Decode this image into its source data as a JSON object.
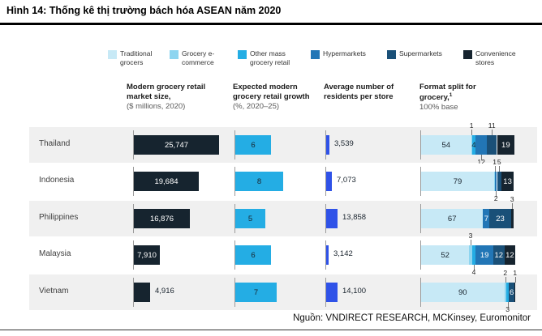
{
  "title": "Hình 14: Thống kê thị trường bách hóa ASEAN năm 2020",
  "source": "Nguồn: VNDIRECT RESEARCH, MCKinsey, Euromonitor",
  "colors": {
    "traditional": "#c7e9f6",
    "ecommerce": "#8ed5f0",
    "othermass": "#24ade4",
    "hypermarkets": "#2276b6",
    "supermarkets": "#1a5078",
    "convenience": "#16242f",
    "residents_bar": "#2f52e8",
    "dark_text": "#1a242e"
  },
  "legend": [
    {
      "key": "traditional",
      "label": "Traditional grocers"
    },
    {
      "key": "ecommerce",
      "label": "Grocery e-commerce"
    },
    {
      "key": "othermass",
      "label": "Other mass grocery retail"
    },
    {
      "key": "hypermarkets",
      "label": "Hypermarkets"
    },
    {
      "key": "supermarkets",
      "label": "Supermarkets"
    },
    {
      "key": "convenience",
      "label": "Convenience stores"
    }
  ],
  "columns": [
    {
      "title": "Modern grocery retail market size,",
      "subtitle": "($ millions, 2020)"
    },
    {
      "title": "Expected modern grocery retail growth",
      "subtitle": "(%, 2020–25)"
    },
    {
      "title": "Average number of residents per store",
      "subtitle": ""
    },
    {
      "title": "Format split for grocery,",
      "footnote_marker": "1",
      "subtitle": "100% base"
    }
  ],
  "chart_data": {
    "type": "bar",
    "countries": [
      "Thailand",
      "Indonesia",
      "Philippines",
      "Malaysia",
      "Vietnam"
    ],
    "market_size_musd": [
      25747,
      19684,
      16876,
      7910,
      4916
    ],
    "market_size_labels": [
      "25,747",
      "19,684",
      "16,876",
      "7,910",
      "4,916"
    ],
    "growth_pct": [
      6,
      8,
      5,
      6,
      7
    ],
    "residents_per_store": [
      3539,
      7073,
      13858,
      3142,
      14100
    ],
    "residents_labels": [
      "3,539",
      "7,073",
      "13,858",
      "3,142",
      "14,100"
    ],
    "format_split": [
      {
        "country": "Thailand",
        "segments": [
          {
            "category": "traditional",
            "value": 54,
            "label_pos": "inside"
          },
          {
            "category": "ecommerce",
            "value": 1,
            "label_pos": "above"
          },
          {
            "category": "othermass",
            "value": 4,
            "label_pos": "inside"
          },
          {
            "category": "hypermarkets",
            "value": 12,
            "label_pos": "below"
          },
          {
            "category": "supermarkets",
            "value": 11,
            "label_pos": "above"
          },
          {
            "category": "convenience",
            "value": 19,
            "label_pos": "inside"
          }
        ]
      },
      {
        "country": "Indonesia",
        "segments": [
          {
            "category": "traditional",
            "value": 79,
            "label_pos": "inside"
          },
          {
            "category": "ecommerce",
            "value": 1,
            "label_pos": "above"
          },
          {
            "category": "hypermarkets",
            "value": 2,
            "label_pos": "below"
          },
          {
            "category": "supermarkets",
            "value": 5,
            "label_pos": "above"
          },
          {
            "category": "convenience",
            "value": 13,
            "label_pos": "inside"
          }
        ]
      },
      {
        "country": "Philippines",
        "segments": [
          {
            "category": "traditional",
            "value": 67,
            "label_pos": "inside"
          },
          {
            "category": "hypermarkets",
            "value": 7,
            "label_pos": "inside"
          },
          {
            "category": "supermarkets",
            "value": 23,
            "label_pos": "inside"
          },
          {
            "category": "convenience",
            "value": 3,
            "label_pos": "above"
          }
        ]
      },
      {
        "country": "Malaysia",
        "segments": [
          {
            "category": "traditional",
            "value": 52,
            "label_pos": "inside"
          },
          {
            "category": "ecommerce",
            "value": 3,
            "label_pos": "above"
          },
          {
            "category": "othermass",
            "value": 4,
            "label_pos": "below"
          },
          {
            "category": "hypermarkets",
            "value": 19,
            "label_pos": "inside"
          },
          {
            "category": "supermarkets",
            "value": 12,
            "label_pos": "inside"
          },
          {
            "category": "convenience",
            "value": 12,
            "label_pos": "inside"
          }
        ]
      },
      {
        "country": "Vietnam",
        "segments": [
          {
            "category": "traditional",
            "value": 90,
            "label_pos": "inside"
          },
          {
            "category": "ecommerce",
            "value": 2,
            "label_pos": "above"
          },
          {
            "category": "othermass",
            "value": 3,
            "label_pos": "below"
          },
          {
            "category": "supermarkets",
            "value": 6,
            "label_pos": "inside"
          },
          {
            "category": "convenience",
            "value": 1,
            "label_pos": "above"
          }
        ]
      }
    ]
  }
}
